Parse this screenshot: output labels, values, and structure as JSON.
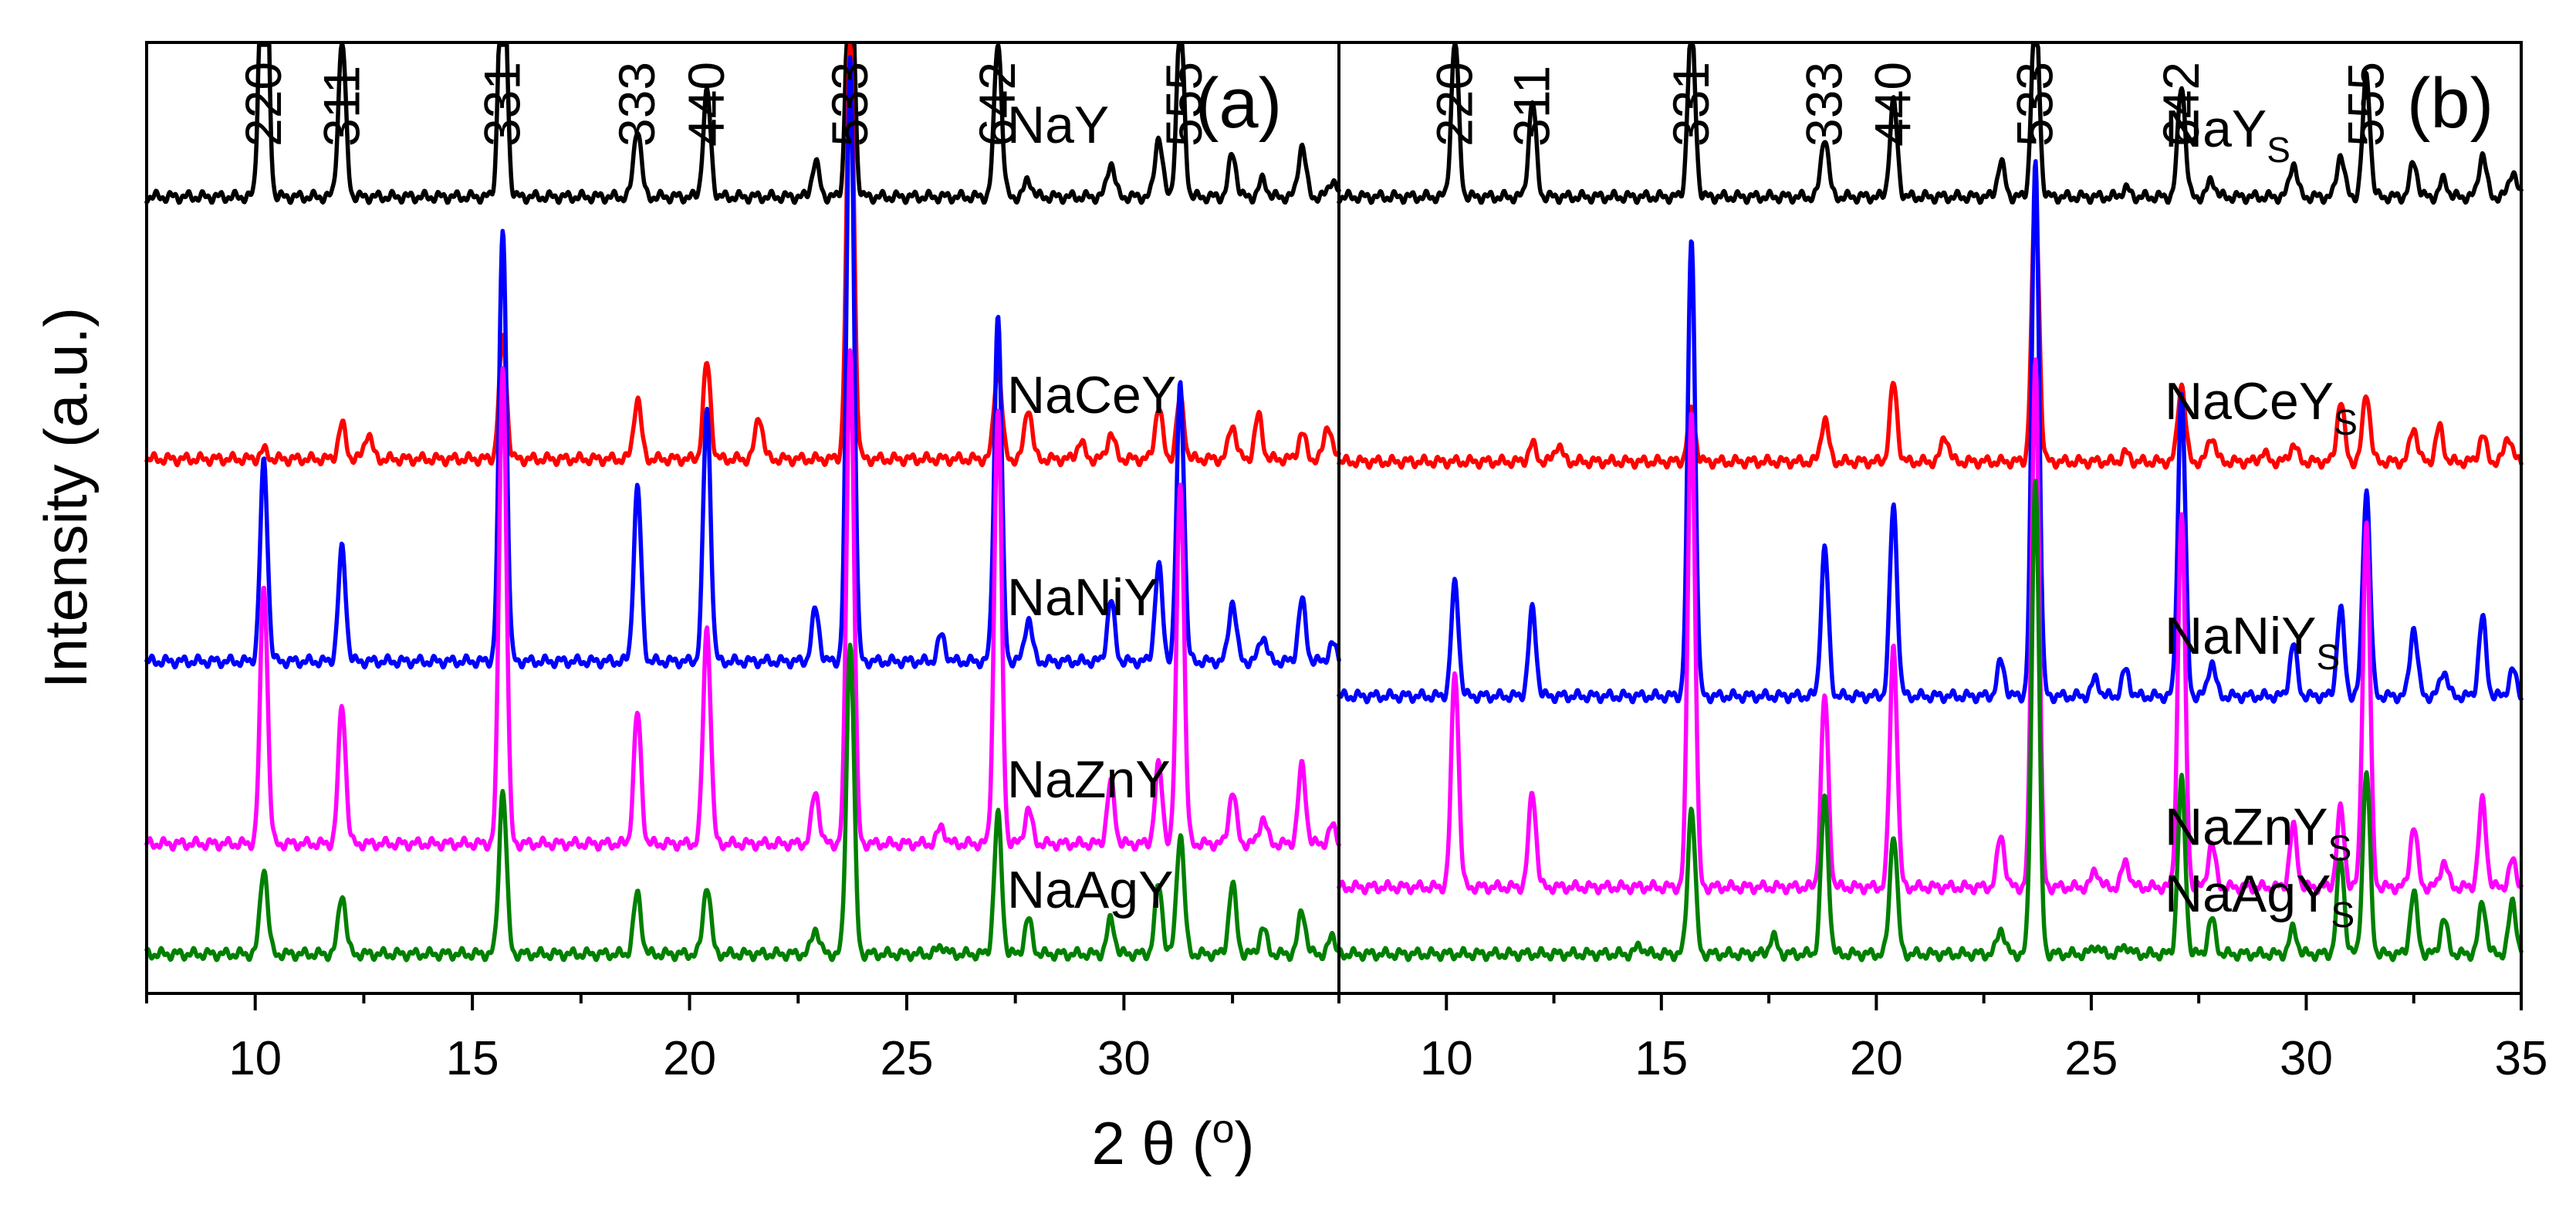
{
  "chart_data": {
    "type": "line",
    "xlabel_parts": [
      "2 θ (",
      "o",
      ")"
    ],
    "ylabel": "Intensity (a.u.)",
    "xlim": [
      7.5,
      35
    ],
    "x_ticks": [
      "10",
      "15",
      "20",
      "25",
      "30",
      "35"
    ],
    "colors": {
      "NaY": "#000000",
      "NaCeY": "#ff0000",
      "NaNiY": "#0000ff",
      "NaZnY": "#ff00ff",
      "NaAgY": "#008000"
    },
    "panels": [
      {
        "id": "a",
        "panel_label": "(a)",
        "peak_labels": [
          {
            "hkl": "220",
            "x": 10.2
          },
          {
            "hkl": "311",
            "x": 12.0
          },
          {
            "hkl": "331",
            "x": 15.7
          },
          {
            "hkl": "333",
            "x": 18.8
          },
          {
            "hkl": "440",
            "x": 20.4
          },
          {
            "hkl": "533",
            "x": 23.7
          },
          {
            "hkl": "642",
            "x": 27.1
          },
          {
            "hkl": "555",
            "x": 31.4
          }
        ],
        "series": [
          {
            "key": "NaY",
            "label": "NaY",
            "sub": "",
            "baseline": 0.88,
            "peaks": [
              [
                10.2,
                0.5
              ],
              [
                12.0,
                0.18
              ],
              [
                15.7,
                0.34
              ],
              [
                18.8,
                0.08
              ],
              [
                20.4,
                0.12
              ],
              [
                22.9,
                0.04
              ],
              [
                23.7,
                0.33
              ],
              [
                27.1,
                0.18
              ],
              [
                27.8,
                0.02
              ],
              [
                29.7,
                0.04
              ],
              [
                30.8,
                0.07
              ],
              [
                31.3,
                0.2
              ],
              [
                32.5,
                0.05
              ],
              [
                33.2,
                0.02
              ],
              [
                34.1,
                0.06
              ],
              [
                34.8,
                0.02
              ]
            ]
          },
          {
            "key": "NaCeY",
            "label": "NaCeY",
            "sub": "",
            "baseline": 0.578,
            "peaks": [
              [
                10.2,
                0.01
              ],
              [
                12.0,
                0.04
              ],
              [
                12.6,
                0.03
              ],
              [
                15.7,
                0.14
              ],
              [
                18.8,
                0.07
              ],
              [
                20.4,
                0.11
              ],
              [
                21.6,
                0.05
              ],
              [
                23.7,
                0.48
              ],
              [
                27.1,
                0.11
              ],
              [
                27.8,
                0.06
              ],
              [
                29.0,
                0.02
              ],
              [
                29.7,
                0.03
              ],
              [
                30.8,
                0.06
              ],
              [
                31.3,
                0.07
              ],
              [
                32.5,
                0.04
              ],
              [
                33.1,
                0.05
              ],
              [
                34.1,
                0.03
              ],
              [
                34.7,
                0.04
              ]
            ]
          },
          {
            "key": "NaNiY",
            "label": "NaNiY",
            "sub": "",
            "baseline": 0.345,
            "peaks": [
              [
                10.2,
                0.23
              ],
              [
                12.0,
                0.13
              ],
              [
                15.7,
                0.5
              ],
              [
                18.8,
                0.2
              ],
              [
                20.4,
                0.29
              ],
              [
                22.9,
                0.06
              ],
              [
                23.7,
                0.7
              ],
              [
                25.8,
                0.03
              ],
              [
                27.1,
                0.4
              ],
              [
                27.8,
                0.05
              ],
              [
                29.7,
                0.07
              ],
              [
                30.8,
                0.11
              ],
              [
                31.3,
                0.32
              ],
              [
                32.5,
                0.07
              ],
              [
                33.2,
                0.03
              ],
              [
                34.1,
                0.07
              ],
              [
                34.8,
                0.02
              ]
            ]
          },
          {
            "key": "NaZnY",
            "label": "NaZnY",
            "sub": "",
            "baseline": 0.135,
            "peaks": [
              [
                10.2,
                0.3
              ],
              [
                12.0,
                0.16
              ],
              [
                15.7,
                0.55
              ],
              [
                18.8,
                0.15
              ],
              [
                20.4,
                0.25
              ],
              [
                22.9,
                0.06
              ],
              [
                23.7,
                0.57
              ],
              [
                25.8,
                0.02
              ],
              [
                27.1,
                0.5
              ],
              [
                27.8,
                0.04
              ],
              [
                29.7,
                0.07
              ],
              [
                30.8,
                0.09
              ],
              [
                31.3,
                0.42
              ],
              [
                32.5,
                0.06
              ],
              [
                33.2,
                0.03
              ],
              [
                34.1,
                0.09
              ],
              [
                34.8,
                0.02
              ]
            ]
          },
          {
            "key": "NaAgY",
            "label": "NaAgY",
            "sub": "",
            "baseline": 0.008,
            "peaks": [
              [
                10.2,
                0.1
              ],
              [
                12.0,
                0.07
              ],
              [
                15.7,
                0.19
              ],
              [
                18.8,
                0.07
              ],
              [
                20.4,
                0.08
              ],
              [
                22.9,
                0.03
              ],
              [
                23.7,
                0.36
              ],
              [
                25.8,
                0.01
              ],
              [
                27.1,
                0.16
              ],
              [
                27.8,
                0.04
              ],
              [
                29.7,
                0.04
              ],
              [
                30.8,
                0.08
              ],
              [
                31.3,
                0.14
              ],
              [
                32.5,
                0.08
              ],
              [
                33.2,
                0.03
              ],
              [
                34.1,
                0.05
              ],
              [
                34.8,
                0.02
              ]
            ]
          }
        ]
      },
      {
        "id": "b",
        "panel_label": "(b)",
        "peak_labels": [
          {
            "hkl": "220",
            "x": 10.2
          },
          {
            "hkl": "311",
            "x": 12.0
          },
          {
            "hkl": "331",
            "x": 15.7
          },
          {
            "hkl": "333",
            "x": 18.8
          },
          {
            "hkl": "440",
            "x": 20.4
          },
          {
            "hkl": "533",
            "x": 23.7
          },
          {
            "hkl": "642",
            "x": 27.1
          },
          {
            "hkl": "555",
            "x": 31.4
          }
        ],
        "series": [
          {
            "key": "NaY",
            "label": "NaY",
            "sub": "S",
            "baseline": 0.88,
            "peaks": [
              [
                10.2,
                0.18
              ],
              [
                12.0,
                0.11
              ],
              [
                15.7,
                0.2
              ],
              [
                18.8,
                0.07
              ],
              [
                20.4,
                0.11
              ],
              [
                22.9,
                0.04
              ],
              [
                23.7,
                0.23
              ],
              [
                25.8,
                0.01
              ],
              [
                27.1,
                0.13
              ],
              [
                27.8,
                0.02
              ],
              [
                29.7,
                0.04
              ],
              [
                30.8,
                0.05
              ],
              [
                31.4,
                0.14
              ],
              [
                32.5,
                0.04
              ],
              [
                33.2,
                0.02
              ],
              [
                34.1,
                0.05
              ],
              [
                34.8,
                0.03
              ]
            ]
          },
          {
            "key": "NaCeY",
            "label": "NaCeY",
            "sub": "S",
            "baseline": 0.575,
            "peaks": [
              [
                12.0,
                0.02
              ],
              [
                12.6,
                0.02
              ],
              [
                15.7,
                0.06
              ],
              [
                18.8,
                0.05
              ],
              [
                20.4,
                0.09
              ],
              [
                21.6,
                0.03
              ],
              [
                23.7,
                0.3
              ],
              [
                25.8,
                0.01
              ],
              [
                27.1,
                0.09
              ],
              [
                27.8,
                0.03
              ],
              [
                29.0,
                0.01
              ],
              [
                29.7,
                0.02
              ],
              [
                30.8,
                0.07
              ],
              [
                31.4,
                0.08
              ],
              [
                32.5,
                0.04
              ],
              [
                33.1,
                0.04
              ],
              [
                34.1,
                0.03
              ],
              [
                34.7,
                0.03
              ]
            ]
          },
          {
            "key": "NaNiY",
            "label": "NaNiY",
            "sub": "S",
            "baseline": 0.305,
            "peaks": [
              [
                10.2,
                0.13
              ],
              [
                12.0,
                0.1
              ],
              [
                15.7,
                0.53
              ],
              [
                18.8,
                0.17
              ],
              [
                20.4,
                0.22
              ],
              [
                22.9,
                0.04
              ],
              [
                23.7,
                0.62
              ],
              [
                25.1,
                0.02
              ],
              [
                25.8,
                0.03
              ],
              [
                27.1,
                0.35
              ],
              [
                27.8,
                0.04
              ],
              [
                29.7,
                0.06
              ],
              [
                30.8,
                0.1
              ],
              [
                31.4,
                0.24
              ],
              [
                32.5,
                0.08
              ],
              [
                33.2,
                0.03
              ],
              [
                34.1,
                0.09
              ],
              [
                34.8,
                0.03
              ]
            ]
          },
          {
            "key": "NaZnY",
            "label": "NaZnY",
            "sub": "S",
            "baseline": 0.085,
            "peaks": [
              [
                10.2,
                0.25
              ],
              [
                12.0,
                0.11
              ],
              [
                15.7,
                0.55
              ],
              [
                18.8,
                0.22
              ],
              [
                20.4,
                0.28
              ],
              [
                22.9,
                0.06
              ],
              [
                23.7,
                0.61
              ],
              [
                25.1,
                0.02
              ],
              [
                25.8,
                0.03
              ],
              [
                27.1,
                0.43
              ],
              [
                27.8,
                0.05
              ],
              [
                29.7,
                0.07
              ],
              [
                30.8,
                0.09
              ],
              [
                31.4,
                0.42
              ],
              [
                32.5,
                0.07
              ],
              [
                33.2,
                0.03
              ],
              [
                34.1,
                0.1
              ],
              [
                34.8,
                0.03
              ]
            ]
          },
          {
            "key": "NaAgY",
            "label": "NaAgY",
            "sub": "S",
            "baseline": 0.008,
            "peaks": [
              [
                14.5,
                0.01
              ],
              [
                15.7,
                0.17
              ],
              [
                17.6,
                0.02
              ],
              [
                18.8,
                0.18
              ],
              [
                20.4,
                0.14
              ],
              [
                22.9,
                0.03
              ],
              [
                23.7,
                0.55
              ],
              [
                25.1,
                0.01
              ],
              [
                25.8,
                0.01
              ],
              [
                27.1,
                0.2
              ],
              [
                27.8,
                0.04
              ],
              [
                29.7,
                0.03
              ],
              [
                30.8,
                0.11
              ],
              [
                31.4,
                0.21
              ],
              [
                32.5,
                0.07
              ],
              [
                33.2,
                0.04
              ],
              [
                34.1,
                0.06
              ],
              [
                34.8,
                0.06
              ]
            ]
          }
        ]
      }
    ]
  }
}
